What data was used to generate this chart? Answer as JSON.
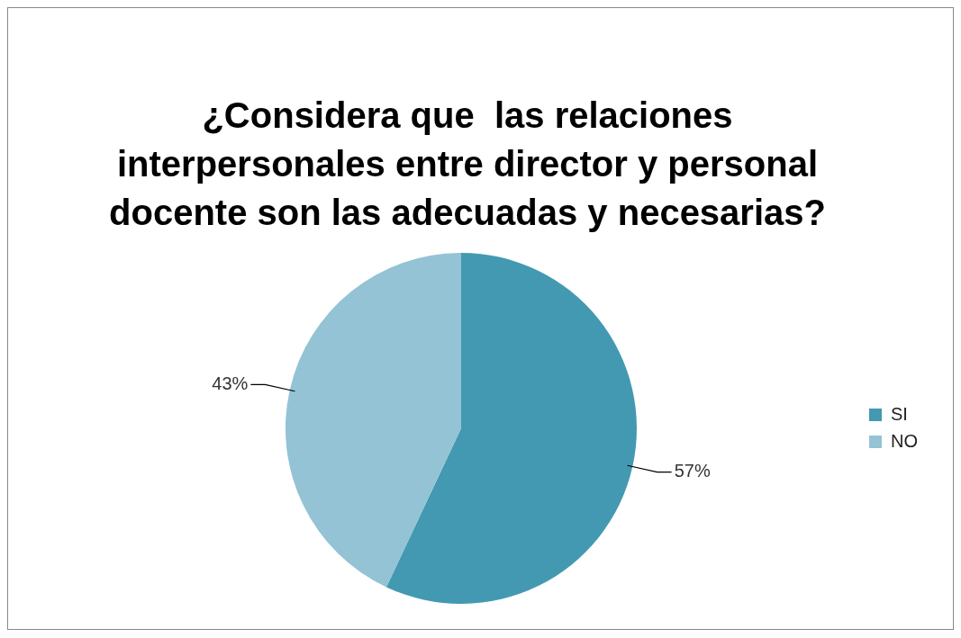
{
  "chart_data": {
    "type": "pie",
    "title": "¿Considera que  las relaciones interpersonales entre director y personal docente son las adecuadas y necesarias?",
    "categories": [
      "SI",
      "NO"
    ],
    "values": [
      57,
      43
    ],
    "colors": [
      "#4399b1",
      "#93c3d4"
    ],
    "value_labels": [
      "57%",
      "43%"
    ],
    "legend": "right"
  }
}
